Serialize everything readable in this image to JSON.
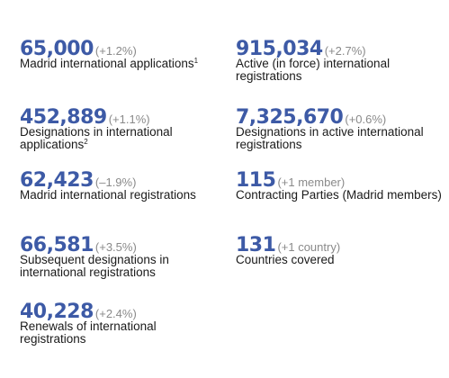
{
  "stats": [
    {
      "value": "65,000",
      "change": "(+1.2%)",
      "label": "Madrid international applications",
      "footnote": "1"
    },
    {
      "value": "915,034",
      "change": "(+2.7%)",
      "label": "Active (in force) international registrations"
    },
    {
      "value": "452,889",
      "change": "(+1.1%)",
      "label": "Designations in international applications",
      "footnote": "2"
    },
    {
      "value": "7,325,670",
      "change": "(+0.6%)",
      "label": "Designations in active international registrations"
    },
    {
      "value": "62,423",
      "change": "(–1.9%)",
      "label": "Madrid international registrations"
    },
    {
      "value": "115",
      "change": "(+1 member)",
      "label": "Contracting Parties (Madrid members)"
    },
    {
      "value": "66,581",
      "change": "(+3.5%)",
      "label": "Subsequent designations in international registrations"
    },
    {
      "value": "131",
      "change": "(+1 country)",
      "label": "Countries covered"
    },
    {
      "value": "40,228",
      "change": "(+2.4%)",
      "label": "Renewals of international registrations"
    }
  ],
  "colors": {
    "value": "#3d5aa6",
    "change": "#8a8a8a",
    "label": "#1a1a1a"
  }
}
